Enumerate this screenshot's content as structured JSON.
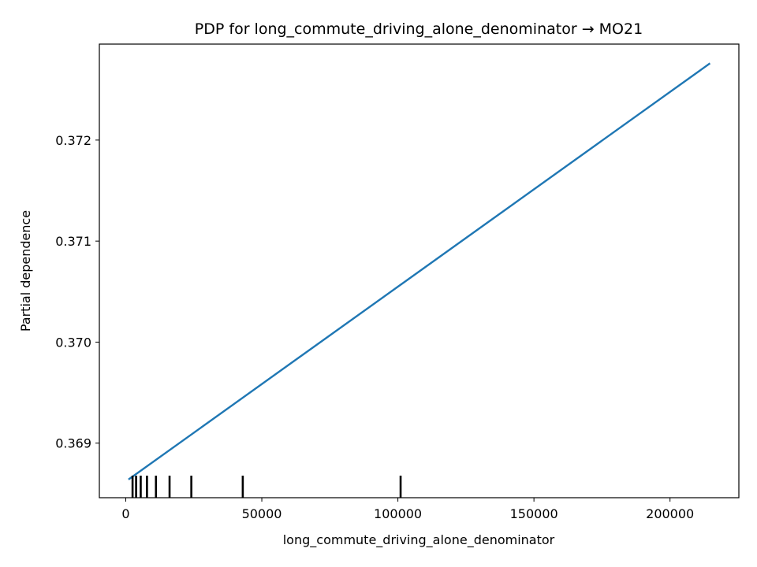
{
  "chart_data": {
    "type": "line",
    "title": "PDP for long_commute_driving_alone_denominator → MO21",
    "xlabel": "long_commute_driving_alone_denominator",
    "ylabel": "Partial dependence",
    "xlim": [
      -9700,
      225300
    ],
    "ylim": [
      0.36846,
      0.37295
    ],
    "x_ticks": [
      0,
      50000,
      100000,
      150000,
      200000
    ],
    "x_tick_labels": [
      "0",
      "50000",
      "100000",
      "150000",
      "200000"
    ],
    "y_ticks": [
      0.369,
      0.37,
      0.371,
      0.372
    ],
    "y_tick_labels": [
      "0.369",
      "0.370",
      "0.371",
      "0.372"
    ],
    "grid": false,
    "series": [
      {
        "color": "#1f77b4",
        "x": [
          1000,
          214700
        ],
        "y": [
          0.36864,
          0.37276
        ]
      }
    ],
    "rug_x": [
      2500,
      3800,
      5500,
      7800,
      11100,
      16100,
      24100,
      43000,
      101000
    ]
  }
}
